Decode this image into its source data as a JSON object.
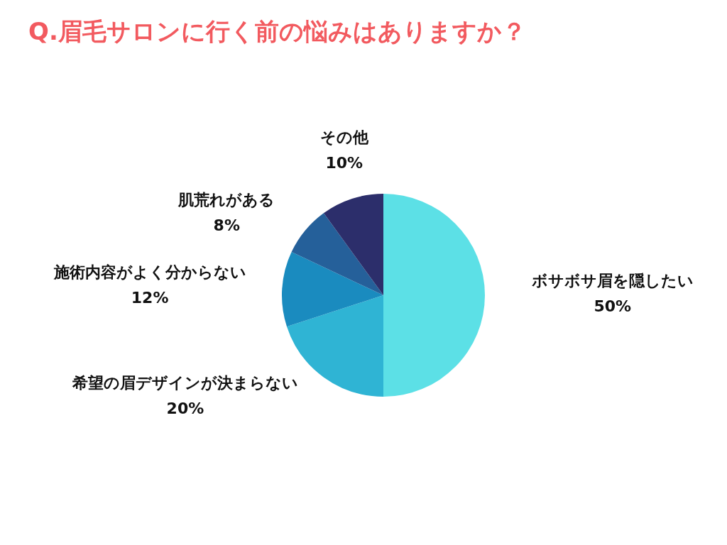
{
  "chart_data": {
    "type": "pie",
    "title": "Q.眉毛サロンに行く前の悩みはありますか？",
    "categories": [
      "ボサボサ眉を隠したい",
      "希望の眉デザインが決まらない",
      "施術内容がよく分からない",
      "肌荒れがある",
      "その他"
    ],
    "values": [
      50,
      20,
      12,
      8,
      10
    ],
    "value_labels": [
      "50%",
      "20%",
      "12%",
      "8%",
      "10%"
    ],
    "colors": [
      "#5ce0e6",
      "#2fb4d4",
      "#1a8bbf",
      "#25609a",
      "#2c2e6b"
    ],
    "legend": false
  }
}
